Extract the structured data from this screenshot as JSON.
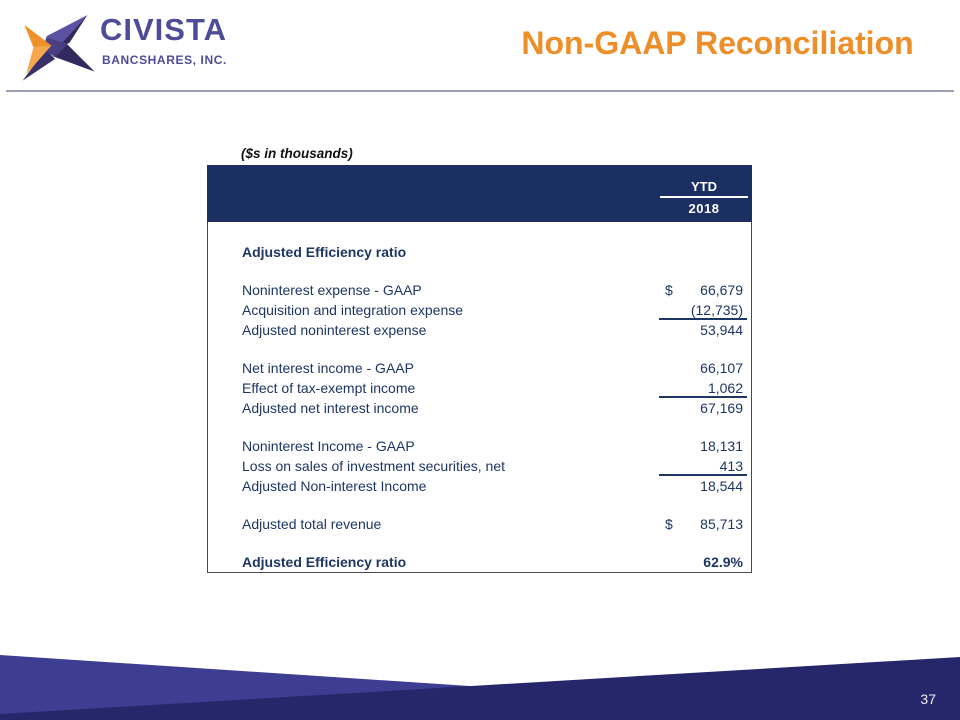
{
  "logo": {
    "name": "CIVISTA",
    "subname": "BANCSHARES, INC.",
    "purple": "#4e4c99",
    "star_dark": "#33295e",
    "star_mid": "#4a3f82",
    "star_light": "#5c52a4",
    "star_orange_dark": "#ee9129",
    "star_orange_light": "#f5a74c"
  },
  "header": {
    "title": "Non-GAAP Reconciliation",
    "title_color": "#ed8e29",
    "rule_color": "#9aa1b4"
  },
  "table": {
    "note": "($s in thousands)",
    "header_bg": "#1b2f63",
    "text_color": "#1e3663",
    "col_header": {
      "period": "YTD",
      "year": "2018"
    },
    "rows": [
      {
        "label": "Adjusted Efficiency ratio",
        "value": "",
        "bold": true
      },
      {
        "label": "Noninterest expense - GAAP",
        "dollar": "$",
        "value": "66,679",
        "gap_before": true
      },
      {
        "label": "Acquisition and integration expense",
        "value": "(12,735)",
        "underline": true
      },
      {
        "label": "Adjusted noninterest expense",
        "value": "53,944"
      },
      {
        "label": "Net interest income - GAAP",
        "value": "66,107",
        "gap_before": true
      },
      {
        "label": "Effect of tax-exempt income",
        "value": "1,062",
        "underline": true
      },
      {
        "label": "Adjusted net interest income",
        "value": "67,169"
      },
      {
        "label": "Noninterest Income - GAAP",
        "value": "18,131",
        "gap_before": true
      },
      {
        "label": "Loss on sales of investment securities, net",
        "value": "413",
        "underline": true
      },
      {
        "label": "Adjusted Non-interest Income",
        "value": "18,544"
      },
      {
        "label": "Adjusted total revenue",
        "dollar": "$",
        "value": "85,713",
        "gap_before": true
      },
      {
        "label": "Adjusted Efficiency ratio",
        "value": "62.9%",
        "bold": true,
        "gap_before": true
      }
    ]
  },
  "footer": {
    "page_number": "37",
    "ribbon_light": "#3d3d92",
    "ribbon_dark": "#26266b"
  }
}
